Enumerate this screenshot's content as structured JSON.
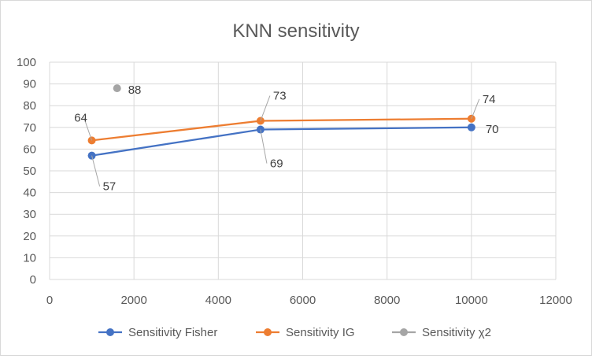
{
  "chart_data": {
    "type": "scatter",
    "title": "KNN sensitivity",
    "xlabel": "",
    "ylabel": "",
    "xlim": [
      0,
      12000
    ],
    "ylim": [
      0,
      100
    ],
    "x_ticks": [
      0,
      2000,
      4000,
      6000,
      8000,
      10000,
      12000
    ],
    "y_ticks": [
      0,
      10,
      20,
      30,
      40,
      50,
      60,
      70,
      80,
      90,
      100
    ],
    "grid": "on",
    "legend_position": "bottom",
    "series": [
      {
        "name": "Sensitivity Fisher",
        "color": "#4472c4",
        "lines": true,
        "points": [
          {
            "x": 1000,
            "y": 57,
            "label": "57"
          },
          {
            "x": 5000,
            "y": 69,
            "label": "69"
          },
          {
            "x": 10000,
            "y": 70,
            "label": "70"
          }
        ]
      },
      {
        "name": "Sensitivity IG",
        "color": "#ed7d31",
        "lines": true,
        "points": [
          {
            "x": 1000,
            "y": 64,
            "label": "64"
          },
          {
            "x": 5000,
            "y": 73,
            "label": "73"
          },
          {
            "x": 10000,
            "y": 74,
            "label": "74"
          }
        ]
      },
      {
        "name": "Sensitivity χ2",
        "color": "#a5a5a5",
        "lines": false,
        "points": [
          {
            "x": 1600,
            "y": 88,
            "label": "88"
          }
        ]
      }
    ]
  }
}
